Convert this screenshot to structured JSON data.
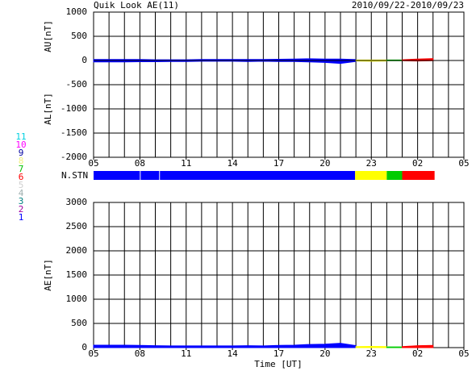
{
  "chart_data": [
    {
      "type": "area",
      "title": "Quik Look AE(11)",
      "subtitle": "2010/09/22-2010/09/23",
      "ylabels": [
        "AU[nT]",
        "AL[nT]"
      ],
      "xlim": [
        5,
        29
      ],
      "xticks": [
        {
          "value": 5,
          "label": "05"
        },
        {
          "value": 8,
          "label": "08"
        },
        11,
        14,
        17,
        20,
        23,
        {
          "value": 26,
          "label": "02"
        },
        {
          "value": 29,
          "label": "05"
        }
      ],
      "ylim": [
        -2000,
        1000
      ],
      "yticks": [
        1000,
        500,
        0,
        -500,
        -1000,
        -1500,
        -2000
      ],
      "grid": true,
      "series": [
        {
          "color": "#0000ff",
          "x": [
            5,
            6,
            7,
            8,
            9,
            10,
            11,
            12,
            13,
            14,
            15,
            16,
            17,
            18,
            19,
            20,
            21,
            22
          ],
          "values": [
            20,
            20,
            20,
            20,
            15,
            15,
            15,
            20,
            20,
            20,
            20,
            20,
            25,
            30,
            35,
            30,
            30,
            20
          ]
        },
        {
          "color": "#0000ff",
          "x": [
            5,
            6,
            7,
            8,
            9,
            10,
            11,
            12,
            13,
            14,
            15,
            16,
            17,
            18,
            19,
            20,
            21,
            22
          ],
          "values": [
            -30,
            -30,
            -30,
            -25,
            -25,
            -20,
            -20,
            -15,
            -15,
            -15,
            -20,
            -15,
            -20,
            -20,
            -30,
            -40,
            -60,
            -20
          ]
        },
        {
          "color": "#ffff00",
          "x": [
            22,
            23,
            24
          ],
          "values": [
            10,
            10,
            10
          ]
        },
        {
          "color": "#ffff00",
          "x": [
            22,
            23,
            24
          ],
          "values": [
            -10,
            -15,
            -10
          ]
        },
        {
          "color": "#00cc00",
          "x": [
            24,
            25
          ],
          "values": [
            10,
            10
          ]
        },
        {
          "color": "#00cc00",
          "x": [
            24,
            25
          ],
          "values": [
            -5,
            -5
          ]
        },
        {
          "color": "#ff0000",
          "x": [
            25,
            26,
            27
          ],
          "values": [
            15,
            30,
            40
          ]
        },
        {
          "color": "#ff0000",
          "x": [
            25,
            26,
            27
          ],
          "values": [
            -5,
            -10,
            -5
          ]
        }
      ]
    },
    {
      "type": "area",
      "ylabel": "AE[nT]",
      "xlabel": "Time [UT]",
      "xlim": [
        5,
        29
      ],
      "xticks": [
        {
          "value": 5,
          "label": "05"
        },
        {
          "value": 8,
          "label": "08"
        },
        11,
        14,
        17,
        20,
        23,
        {
          "value": 26,
          "label": "02"
        },
        {
          "value": 29,
          "label": "05"
        }
      ],
      "ylim": [
        0,
        3000
      ],
      "yticks": [
        3000,
        2500,
        2000,
        1500,
        1000,
        500,
        0
      ],
      "grid": true,
      "series": [
        {
          "color": "#0000ff",
          "x": [
            5,
            6,
            7,
            8,
            9,
            10,
            11,
            12,
            13,
            14,
            15,
            16,
            17,
            18,
            19,
            20,
            21,
            22
          ],
          "values": [
            50,
            50,
            50,
            45,
            40,
            35,
            35,
            35,
            35,
            35,
            40,
            35,
            45,
            50,
            65,
            70,
            90,
            40
          ]
        },
        {
          "color": "#ffff00",
          "x": [
            22,
            23,
            24
          ],
          "values": [
            20,
            25,
            20
          ]
        },
        {
          "color": "#00cc00",
          "x": [
            24,
            25
          ],
          "values": [
            15,
            15
          ]
        },
        {
          "color": "#ff0000",
          "x": [
            25,
            26,
            27
          ],
          "values": [
            20,
            40,
            45
          ]
        }
      ]
    }
  ],
  "station_bar": {
    "label": "N.STN",
    "segments": [
      {
        "start": 5,
        "end": 8,
        "color": "#0000ff"
      },
      {
        "start": 8.05,
        "end": 9.25,
        "color": "#0000ff"
      },
      {
        "start": 9.3,
        "end": 21.95,
        "color": "#0000ff"
      },
      {
        "start": 21.95,
        "end": 24,
        "color": "#ffff00"
      },
      {
        "start": 24,
        "end": 25,
        "color": "#00cc00"
      },
      {
        "start": 25,
        "end": 27.1,
        "color": "#ff0000"
      }
    ]
  },
  "station_legend": [
    {
      "label": "11",
      "color": "#00d0e0"
    },
    {
      "label": "10",
      "color": "#ff00ff"
    },
    {
      "label": "9",
      "color": "#0000a0"
    },
    {
      "label": "8",
      "color": "#f0f080"
    },
    {
      "label": "7",
      "color": "#00c000"
    },
    {
      "label": "6",
      "color": "#ff0000"
    },
    {
      "label": "5",
      "color": "#d0d0d0"
    },
    {
      "label": "4",
      "color": "#a0b0b0"
    },
    {
      "label": "3",
      "color": "#008080"
    },
    {
      "label": "2",
      "color": "#a000a0"
    },
    {
      "label": "1",
      "color": "#0000ff"
    }
  ]
}
